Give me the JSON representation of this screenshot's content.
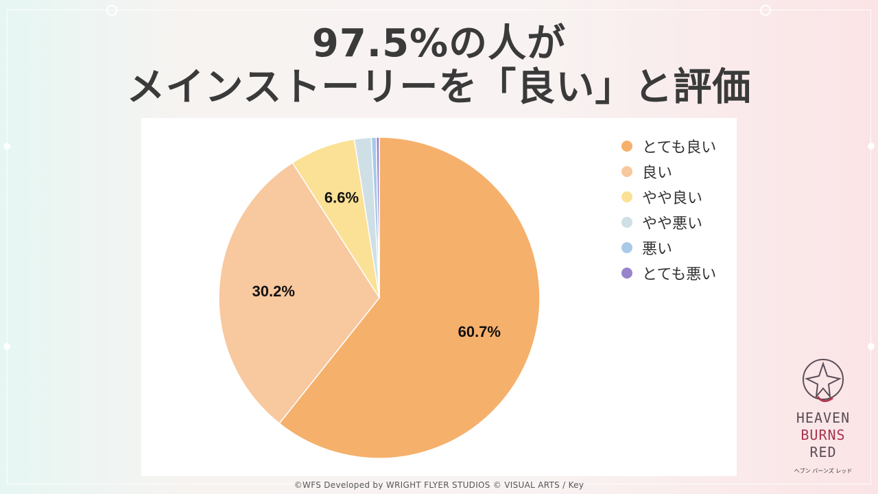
{
  "header": {
    "title_line1": "97.5%の人が",
    "title_line2": "メインストーリーを「良い」と評価"
  },
  "chart_data": {
    "type": "pie",
    "categories": [
      "とても良い",
      "良い",
      "やや良い",
      "やや悪い",
      "悪い",
      "とても悪い"
    ],
    "values": [
      60.7,
      30.2,
      6.6,
      1.7,
      0.5,
      0.3
    ],
    "data_labels": [
      "60.7%",
      "30.2%",
      "6.6%",
      "",
      "",
      ""
    ],
    "colors": [
      "#f5b06c",
      "#f8c89e",
      "#fbe196",
      "#cfdfe6",
      "#a9c9e9",
      "#9784cc"
    ],
    "legend_position": "right",
    "start_angle_deg": 0,
    "direction": "clockwise"
  },
  "footer": {
    "copyright": "©WFS Developed by WRIGHT FLYER STUDIOS  © VISUAL ARTS / Key"
  },
  "logo": {
    "line1": "HEAVEN",
    "line2": "BURNS",
    "line3": "RED",
    "subtitle": "ヘブン バーンズ レッド"
  }
}
